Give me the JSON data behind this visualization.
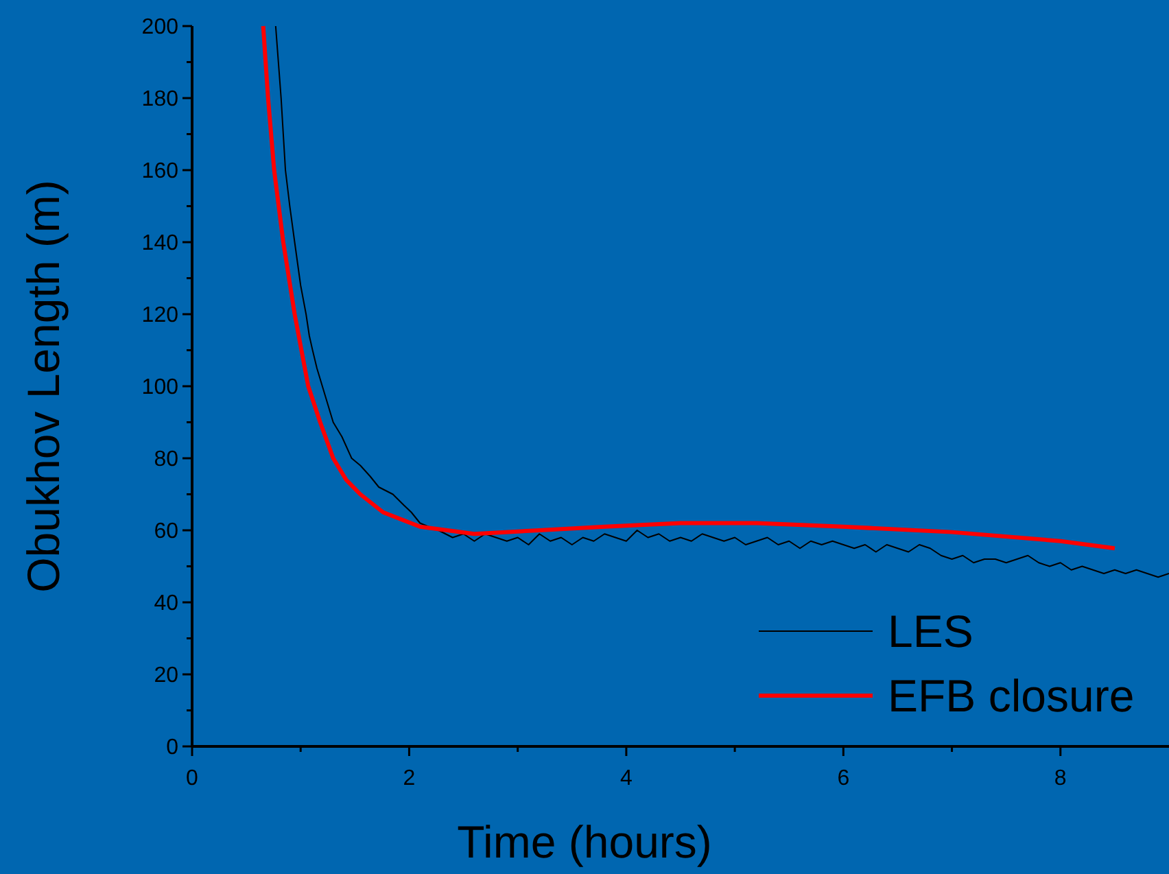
{
  "chart_data": {
    "type": "line",
    "xlabel": "Time (hours)",
    "ylabel": "Obukhov Length (m)",
    "xlim": [
      0,
      9
    ],
    "ylim": [
      0,
      200
    ],
    "xticks": [
      0,
      {
        "value": 1,
        "label": null
      },
      2,
      {
        "value": 3,
        "label": null
      },
      4,
      {
        "value": 5,
        "label": null
      },
      6,
      {
        "value": 7,
        "label": null
      },
      8
    ],
    "yticks": [
      0,
      {
        "value": 10,
        "label": null
      },
      20,
      {
        "value": 30,
        "label": null
      },
      40,
      {
        "value": 50,
        "label": null
      },
      60,
      {
        "value": 70,
        "label": null
      },
      80,
      {
        "value": 90,
        "label": null
      },
      100,
      {
        "value": 110,
        "label": null
      },
      120,
      {
        "value": 130,
        "label": null
      },
      140,
      {
        "value": 150,
        "label": null
      },
      160,
      {
        "value": 170,
        "label": null
      },
      180,
      {
        "value": 190,
        "label": null
      },
      200
    ],
    "grid": false,
    "legend": "bottom right",
    "line_style": "solid",
    "marker": "none",
    "series": [
      {
        "name": "LES",
        "color": "#000000",
        "x": [
          0.77,
          0.8,
          0.82,
          0.84,
          0.86,
          0.9,
          0.945,
          1.0,
          1.05,
          1.08,
          1.11,
          1.15,
          1.2,
          1.25,
          1.3,
          1.38,
          1.47,
          1.55,
          1.64,
          1.72,
          1.85,
          1.95,
          2.02,
          2.1,
          2.18,
          2.27,
          2.4,
          2.5,
          2.6,
          2.7,
          2.8,
          2.9,
          3.0,
          3.1,
          3.2,
          3.3,
          3.4,
          3.5,
          3.6,
          3.7,
          3.8,
          3.9,
          4.0,
          4.1,
          4.2,
          4.3,
          4.4,
          4.5,
          4.6,
          4.7,
          4.8,
          4.9,
          5.0,
          5.1,
          5.2,
          5.3,
          5.4,
          5.5,
          5.6,
          5.7,
          5.8,
          5.9,
          6.0,
          6.1,
          6.2,
          6.3,
          6.4,
          6.5,
          6.6,
          6.7,
          6.8,
          6.9,
          7.0,
          7.1,
          7.2,
          7.3,
          7.4,
          7.5,
          7.6,
          7.7,
          7.8,
          7.9,
          8.0,
          8.1,
          8.2,
          8.3,
          8.4,
          8.5,
          8.6,
          8.7,
          8.8,
          8.9,
          9.0
        ],
        "values": [
          200,
          188,
          180,
          170,
          160,
          150,
          140,
          128,
          120,
          114,
          110,
          105,
          100,
          95,
          90,
          86,
          80,
          78,
          75,
          72,
          70,
          67,
          65,
          62,
          61,
          60,
          58,
          59,
          57,
          59,
          58,
          57,
          58,
          56,
          59,
          57,
          58,
          56,
          58,
          57,
          59,
          58,
          57,
          60,
          58,
          59,
          57,
          58,
          57,
          59,
          58,
          57,
          58,
          56,
          57,
          58,
          56,
          57,
          55,
          57,
          56,
          57,
          56,
          55,
          56,
          54,
          56,
          55,
          54,
          56,
          55,
          53,
          52,
          53,
          51,
          52,
          52,
          51,
          52,
          53,
          51,
          50,
          51,
          49,
          50,
          49,
          48,
          49,
          48,
          49,
          48,
          47,
          48
        ]
      },
      {
        "name": "EFB closure",
        "color": "#ff0000",
        "x": [
          0.655,
          0.7,
          0.756,
          0.84,
          0.945,
          1.07,
          1.18,
          1.3,
          1.42,
          1.55,
          1.76,
          2.1,
          2.6,
          3.2,
          3.8,
          4.5,
          5.2,
          6.0,
          7.0,
          8.0,
          8.5
        ],
        "values": [
          200,
          180,
          160,
          140,
          120,
          100,
          90,
          80,
          74,
          70,
          65,
          61,
          59,
          60,
          61,
          62,
          62,
          61,
          59.5,
          57,
          55
        ]
      }
    ]
  }
}
